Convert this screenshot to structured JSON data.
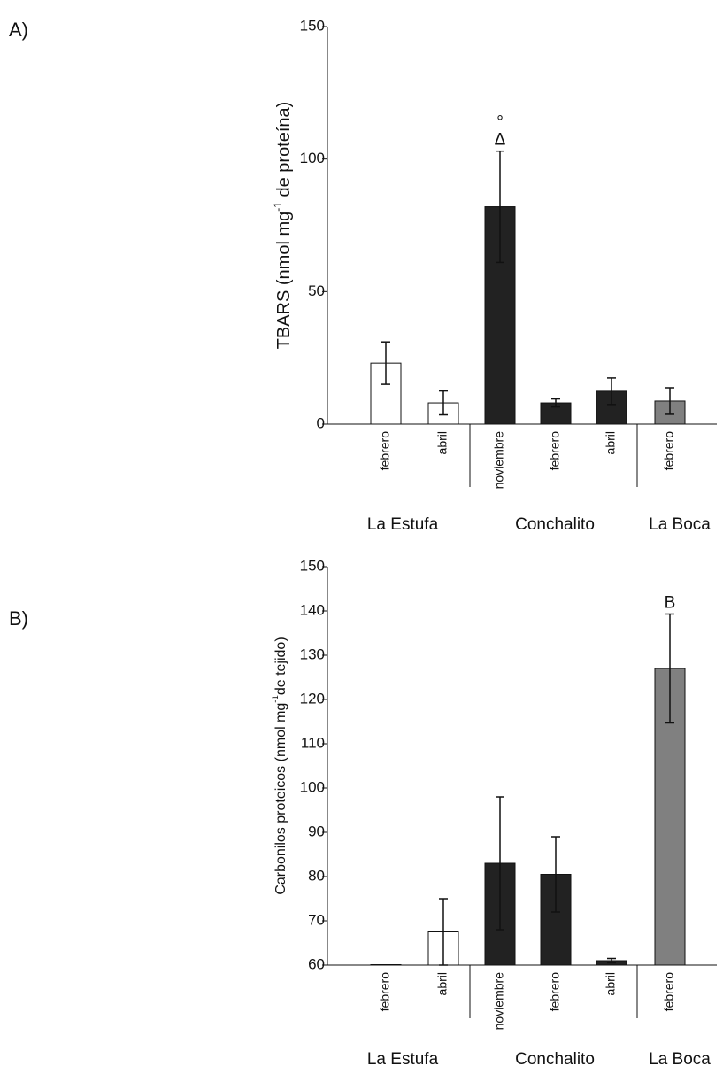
{
  "chart_data": [
    {
      "type": "bar",
      "panel": "A)",
      "ylabel": "TBARS  (nmol mg",
      "ylabel_sup": "-1",
      "ylabel_end": " de proteína)",
      "categories": [
        "febrero",
        "abril",
        "noviembre",
        "febrero",
        "abril",
        "febrero"
      ],
      "groups": [
        "La Estufa",
        "Conchalito",
        "La Boca"
      ],
      "values": [
        23,
        8,
        82,
        8,
        12.4,
        8.7
      ],
      "errors": [
        8,
        4.5,
        21,
        1.5,
        5,
        5
      ],
      "colors": [
        "#ffffff",
        "#ffffff",
        "#222222",
        "#222222",
        "#222222",
        "#808080"
      ],
      "annotations": [
        null,
        null,
        [
          "°",
          "Δ"
        ],
        null,
        null,
        null
      ],
      "ylim": [
        0,
        150
      ],
      "yticks": [
        0,
        50,
        100,
        150
      ]
    },
    {
      "type": "bar",
      "panel": "B)",
      "ylabel": "Carbonilos proteicos (nmol  mg",
      "ylabel_sup": "-1",
      "ylabel_end": "de tejido)",
      "categories": [
        "febrero",
        "abril",
        "noviembre",
        "febrero",
        "abril",
        "febrero"
      ],
      "groups": [
        "La Estufa",
        "Conchalito",
        "La Boca"
      ],
      "values": [
        60.1,
        67.5,
        83,
        80.5,
        61,
        127
      ],
      "errors": [
        0,
        7.5,
        15,
        8.5,
        0.5,
        12.3
      ],
      "colors": [
        "#ffffff",
        "#ffffff",
        "#222222",
        "#222222",
        "#222222",
        "#808080"
      ],
      "annotations": [
        null,
        null,
        null,
        null,
        null,
        [
          "B"
        ]
      ],
      "ylim": [
        60,
        150
      ],
      "yticks": [
        60,
        70,
        80,
        90,
        100,
        110,
        120,
        130,
        140,
        150
      ]
    }
  ]
}
